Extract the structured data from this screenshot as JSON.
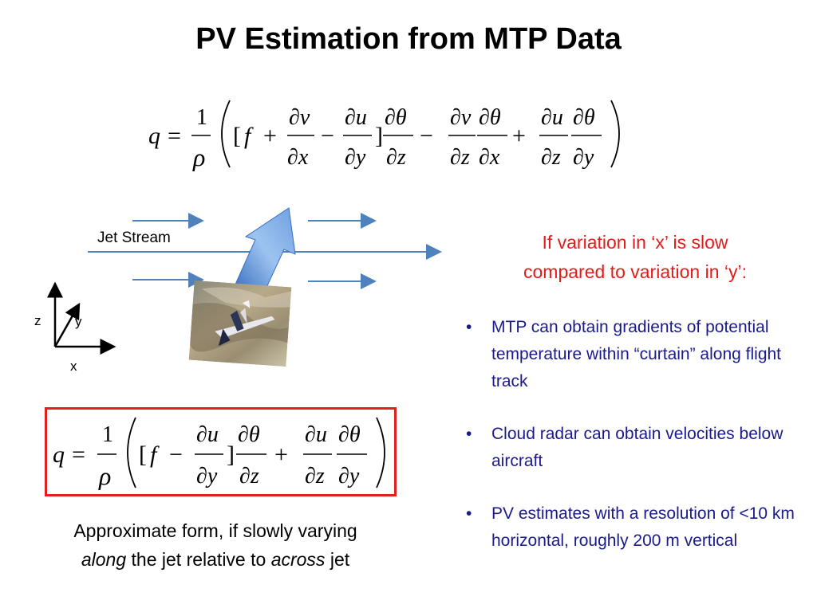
{
  "title": "PV Estimation from MTP Data",
  "diagram": {
    "jet_stream_label": "Jet Stream",
    "axes": {
      "z": "z",
      "y": "y",
      "x": "x"
    },
    "photo_desc": "aircraft-photo",
    "arrow_color": "#4f81bd",
    "flight_arrow_color": "#5b9bd5"
  },
  "approx_box": {
    "border_color": "#e02020"
  },
  "caption": {
    "line1": "Approximate form, if slowly varying",
    "along": "along",
    "middle": " the jet relative to ",
    "across": "across",
    "end": " jet"
  },
  "condition": {
    "line1": "If variation in ‘x’ is slow",
    "line2": "compared to variation in ‘y’:"
  },
  "bullets": [
    {
      "marker": "•",
      "text": "MTP can obtain gradients of potential temperature within “curtain” along flight track"
    },
    {
      "marker": "•",
      "text": "Cloud radar can obtain velocities below aircraft"
    },
    {
      "marker": "•",
      "text": "PV estimates with a resolution of <10 km horizontal, roughly 200 m vertical"
    }
  ],
  "equation_full": {
    "lhs": "q",
    "eq": "=",
    "one": "1",
    "rho": "ρ",
    "lb": "[",
    "f": "f",
    "plus": "+",
    "minus": "−",
    "rb": "]",
    "dv": "∂v",
    "dx": "∂x",
    "du": "∂u",
    "dy": "∂y",
    "dtheta": "∂θ",
    "dz": "∂z"
  },
  "colors": {
    "condition": "#e41b1b",
    "bullets": "#1a1a8c"
  }
}
